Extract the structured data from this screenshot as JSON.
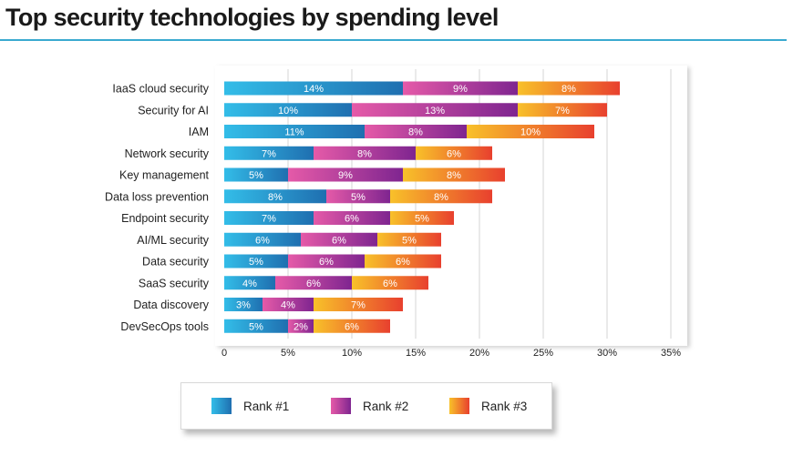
{
  "title": "Top security technologies by spending level",
  "colors": {
    "rank1": [
      "#33bde8",
      "#1f6fb0"
    ],
    "rank2": [
      "#e55aa8",
      "#7f2590"
    ],
    "rank3": [
      "#f8c12a",
      "#e8402e"
    ],
    "accent_rule": "#3aaad0",
    "grid": "#dcdcdc"
  },
  "chart_data": {
    "type": "bar",
    "orientation": "horizontal",
    "stacked": true,
    "title": "Top security technologies by spending level",
    "categories": [
      "IaaS cloud security",
      "Security for AI",
      "IAM",
      "Network security",
      "Key management",
      "Data loss prevention",
      "Endpoint security",
      "AI/ML security",
      "Data security",
      "SaaS security",
      "Data discovery",
      "DevSecOps tools"
    ],
    "series": [
      {
        "name": "Rank #1",
        "values": [
          14,
          10,
          11,
          7,
          5,
          8,
          7,
          6,
          5,
          4,
          3,
          5
        ],
        "labels": [
          "14%",
          "10%",
          "11%",
          "7%",
          "5%",
          "8%",
          "7%",
          "6%",
          "5%",
          "4%",
          "3%",
          "5%"
        ]
      },
      {
        "name": "Rank #2",
        "values": [
          9,
          13,
          8,
          8,
          9,
          5,
          6,
          6,
          6,
          6,
          4,
          2
        ],
        "labels": [
          "9%",
          "13%",
          "8%",
          "8%",
          "9%",
          "5%",
          "6%",
          "6%",
          "6%",
          "6%",
          "4%",
          "2%"
        ]
      },
      {
        "name": "Rank #3",
        "values": [
          8,
          7,
          10,
          6,
          8,
          8,
          5,
          5,
          6,
          6,
          7,
          6
        ],
        "labels": [
          "8%",
          "7%",
          "10%",
          "6%",
          "8%",
          "8%",
          "5%",
          "5%",
          "6%",
          "6%",
          "7%",
          "6%"
        ]
      }
    ],
    "xlim": [
      0,
      35
    ],
    "xticks": [
      0,
      5,
      10,
      15,
      20,
      25,
      30,
      35
    ],
    "xtick_labels": [
      "0",
      "5%",
      "10%",
      "15%",
      "20%",
      "25%",
      "30%",
      "35%"
    ],
    "grid": "vertical",
    "legend_position": "bottom"
  },
  "legend": {
    "items": [
      {
        "label": "Rank #1"
      },
      {
        "label": "Rank #2"
      },
      {
        "label": "Rank #3"
      }
    ]
  }
}
